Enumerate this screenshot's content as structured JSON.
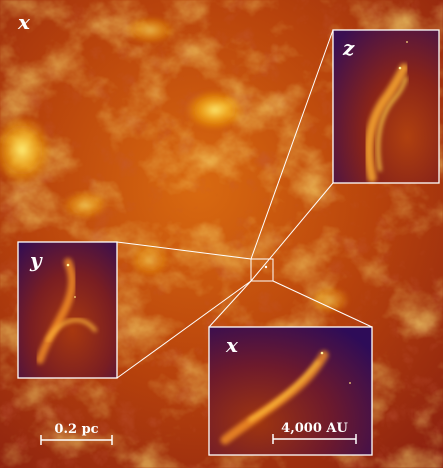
{
  "figure": {
    "main_panel": {
      "projection_label": "x"
    },
    "insets": [
      {
        "id": "z",
        "projection_label": "z"
      },
      {
        "id": "y",
        "projection_label": "y"
      },
      {
        "id": "x",
        "projection_label": "x"
      }
    ],
    "scale_bars": {
      "main": "0.2 pc",
      "zoom": "4,000 AU"
    }
  }
}
